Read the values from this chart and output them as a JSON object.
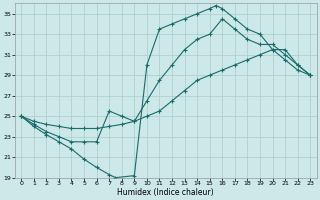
{
  "xlabel": "Humidex (Indice chaleur)",
  "bg_color": "#cce8e8",
  "grid_color": "#aacccc",
  "line_color": "#1a6b6b",
  "xlim": [
    -0.5,
    23.5
  ],
  "ylim": [
    19,
    36
  ],
  "xticks": [
    0,
    1,
    2,
    3,
    4,
    5,
    6,
    7,
    8,
    9,
    10,
    11,
    12,
    13,
    14,
    15,
    16,
    17,
    18,
    19,
    20,
    21,
    22,
    23
  ],
  "yticks": [
    19,
    21,
    23,
    25,
    27,
    29,
    31,
    33,
    35
  ],
  "line1_x": [
    0,
    1,
    2,
    3,
    4,
    5,
    6,
    7,
    7.5,
    9,
    10,
    11,
    12,
    13,
    14,
    15,
    15.5,
    16,
    17,
    18,
    19,
    20,
    21,
    22,
    23
  ],
  "line1_y": [
    25,
    24,
    23.2,
    22.5,
    21.8,
    20.8,
    20.0,
    19.3,
    19.0,
    19.2,
    30,
    33.5,
    34.0,
    34.5,
    35.0,
    35.5,
    35.8,
    35.5,
    34.5,
    33.5,
    33.0,
    31.5,
    30.5,
    29.5,
    29.0
  ],
  "line2_x": [
    0,
    1,
    2,
    3,
    4,
    5,
    6,
    7,
    8,
    9,
    10,
    11,
    12,
    13,
    14,
    15,
    16,
    17,
    18,
    19,
    20,
    21,
    22,
    23
  ],
  "line2_y": [
    25,
    24.2,
    23.5,
    23.0,
    22.5,
    22.5,
    22.5,
    25.5,
    25.0,
    24.5,
    26.5,
    28.5,
    30.0,
    31.5,
    32.5,
    33.0,
    34.5,
    33.5,
    32.5,
    32.0,
    32.0,
    31.0,
    30.0,
    29.0
  ],
  "line3_x": [
    0,
    1,
    2,
    3,
    4,
    5,
    6,
    7,
    8,
    9,
    10,
    11,
    12,
    13,
    14,
    15,
    16,
    17,
    18,
    19,
    20,
    21,
    22,
    23
  ],
  "line3_y": [
    25,
    24.5,
    24.2,
    24.0,
    23.8,
    23.8,
    23.8,
    24.0,
    24.2,
    24.5,
    25.0,
    25.5,
    26.5,
    27.5,
    28.5,
    29.0,
    29.5,
    30.0,
    30.5,
    31.0,
    31.5,
    31.5,
    30.0,
    29.0
  ]
}
